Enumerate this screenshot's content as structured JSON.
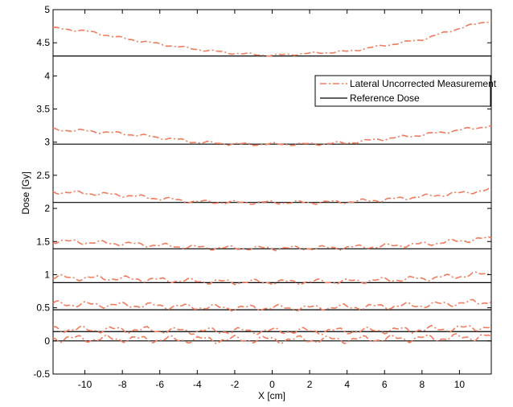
{
  "chart_data": {
    "type": "line",
    "xlabel": "X [cm]",
    "ylabel": "Dose [Gy]",
    "xlim": [
      -11.7,
      11.7
    ],
    "ylim": [
      -0.5,
      5
    ],
    "xticks": [
      -10,
      -8,
      -6,
      -4,
      -2,
      0,
      2,
      4,
      6,
      8,
      10
    ],
    "yticks": [
      -0.5,
      0,
      0.5,
      1,
      1.5,
      2,
      2.5,
      3,
      3.5,
      4,
      4.5,
      5
    ],
    "ytick_labels": [
      "-0.5",
      "0",
      "0.5",
      "1",
      "1.5",
      "2",
      "2.5",
      "3",
      "3.5",
      "4",
      "4.5",
      "5"
    ],
    "legend": {
      "position": "upper-right",
      "entries": [
        {
          "label": "Lateral Uncorrected Measurement",
          "style": "dash-dot",
          "color": "#f07a5c"
        },
        {
          "label": "Reference Dose",
          "style": "solid",
          "color": "#000000"
        }
      ]
    },
    "reference_levels": [
      4.3,
      2.97,
      2.09,
      1.39,
      0.88,
      0.47,
      0.14,
      0.0
    ],
    "measurement_profiles": [
      {
        "x": [
          -11.7,
          -10,
          -8,
          -6,
          -4,
          -2,
          0,
          2,
          4,
          6,
          8,
          10,
          11.7
        ],
        "y": [
          4.72,
          4.68,
          4.57,
          4.48,
          4.4,
          4.34,
          4.31,
          4.34,
          4.37,
          4.46,
          4.55,
          4.72,
          4.84
        ]
      },
      {
        "x": [
          -11.7,
          -10,
          -8,
          -6,
          -4,
          -2,
          0,
          2,
          4,
          6,
          8,
          10,
          11.7
        ],
        "y": [
          3.19,
          3.17,
          3.13,
          3.07,
          3.0,
          2.97,
          2.97,
          2.97,
          2.99,
          3.05,
          3.11,
          3.18,
          3.25
        ]
      },
      {
        "x": [
          -11.7,
          -10,
          -8,
          -6,
          -4,
          -2,
          0,
          2,
          4,
          6,
          8,
          10,
          11.7
        ],
        "y": [
          2.25,
          2.23,
          2.2,
          2.15,
          2.1,
          2.09,
          2.09,
          2.09,
          2.1,
          2.13,
          2.18,
          2.23,
          2.28
        ]
      },
      {
        "x": [
          -11.7,
          -10,
          -8,
          -6,
          -4,
          -2,
          0,
          2,
          4,
          6,
          8,
          10,
          11.7
        ],
        "y": [
          1.51,
          1.49,
          1.47,
          1.44,
          1.41,
          1.4,
          1.4,
          1.4,
          1.41,
          1.43,
          1.46,
          1.51,
          1.55
        ]
      },
      {
        "x": [
          -11.7,
          -10,
          -8,
          -6,
          -4,
          -2,
          0,
          2,
          4,
          6,
          8,
          10,
          11.7
        ],
        "y": [
          0.96,
          0.95,
          0.94,
          0.92,
          0.9,
          0.89,
          0.89,
          0.89,
          0.9,
          0.92,
          0.94,
          0.98,
          1.02
        ]
      },
      {
        "x": [
          -11.7,
          -10,
          -8,
          -6,
          -4,
          -2,
          0,
          2,
          4,
          6,
          8,
          10,
          11.7
        ],
        "y": [
          0.56,
          0.55,
          0.54,
          0.53,
          0.51,
          0.5,
          0.5,
          0.5,
          0.51,
          0.52,
          0.54,
          0.57,
          0.59
        ]
      },
      {
        "x": [
          -11.7,
          -10,
          -8,
          -6,
          -4,
          -2,
          0,
          2,
          4,
          6,
          8,
          10,
          11.7
        ],
        "y": [
          0.18,
          0.17,
          0.17,
          0.16,
          0.15,
          0.15,
          0.15,
          0.15,
          0.15,
          0.16,
          0.17,
          0.19,
          0.21
        ]
      },
      {
        "x": [
          -11.7,
          -10,
          -8,
          -6,
          -4,
          -2,
          0,
          2,
          4,
          6,
          8,
          10,
          11.7
        ],
        "y": [
          0.04,
          0.03,
          0.03,
          0.02,
          0.02,
          0.02,
          0.02,
          0.02,
          0.02,
          0.03,
          0.04,
          0.05,
          0.07
        ]
      }
    ]
  }
}
